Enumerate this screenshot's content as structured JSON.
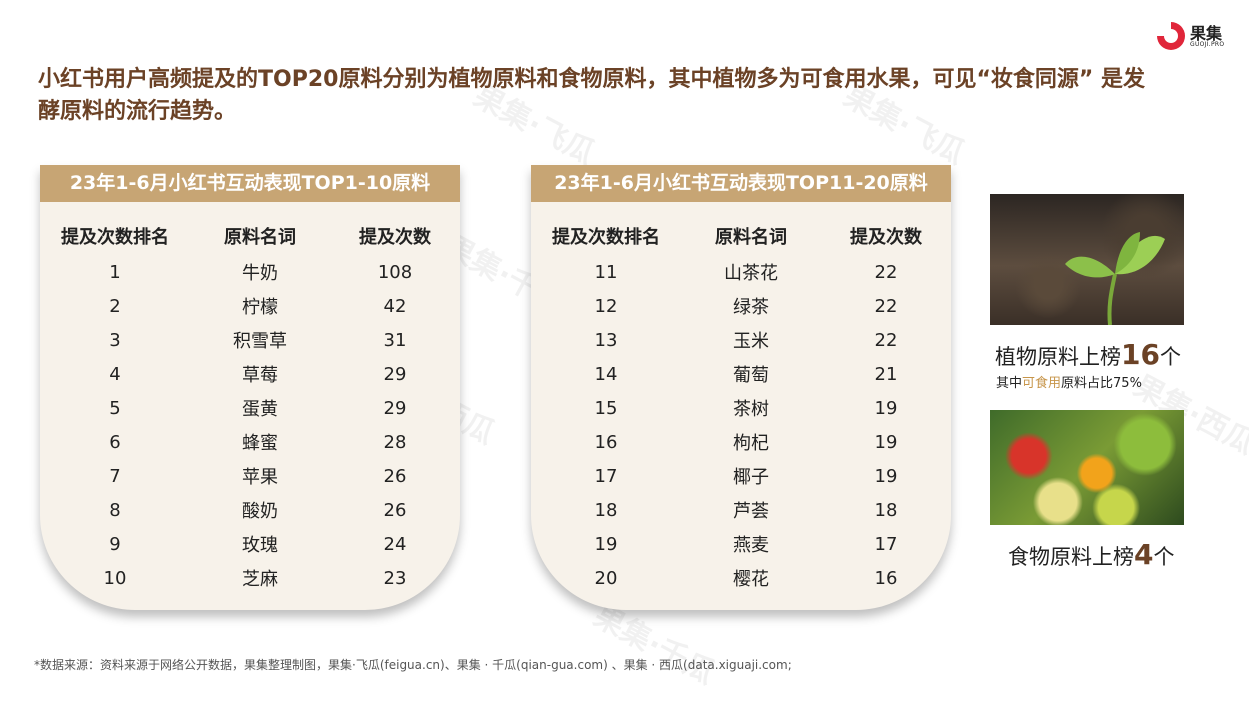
{
  "watermarks": [
    "果集·飞瓜",
    "果集·千瓜",
    "果集·西瓜",
    "果集·飞瓜",
    "果集·千瓜",
    "果集·西瓜",
    "果集·千瓜",
    "果集·西瓜"
  ],
  "logo": {
    "name": "果集",
    "sub": "GUOJI.PRO",
    "color": "#e0263a"
  },
  "headline": "小红书用户高频提及的TOP20原料分别为植物原料和食物原料，其中植物多为可食用水果，可见“妆食同源” 是发酵原料的流行趋势。",
  "colors": {
    "title": "#6b4226",
    "header_bar": "#c7a574",
    "card_bg": "#f7f2ea",
    "highlight": "#c7954a"
  },
  "tables": [
    {
      "title": "23年1-6月小红书互动表现TOP1-10原料",
      "columns": [
        "提及次数排名",
        "原料名词",
        "提及次数"
      ],
      "rows": [
        [
          "1",
          "牛奶",
          "108"
        ],
        [
          "2",
          "柠檬",
          "42"
        ],
        [
          "3",
          "积雪草",
          "31"
        ],
        [
          "4",
          "草莓",
          "29"
        ],
        [
          "5",
          "蛋黄",
          "29"
        ],
        [
          "6",
          "蜂蜜",
          "28"
        ],
        [
          "7",
          "苹果",
          "26"
        ],
        [
          "8",
          "酸奶",
          "26"
        ],
        [
          "9",
          "玫瑰",
          "24"
        ],
        [
          "10",
          "芝麻",
          "23"
        ]
      ]
    },
    {
      "title": "23年1-6月小红书互动表现TOP11-20原料",
      "columns": [
        "提及次数排名",
        "原料名词",
        "提及次数"
      ],
      "rows": [
        [
          "11",
          "山茶花",
          "22"
        ],
        [
          "12",
          "绿茶",
          "22"
        ],
        [
          "13",
          "玉米",
          "22"
        ],
        [
          "14",
          "葡萄",
          "21"
        ],
        [
          "15",
          "茶树",
          "19"
        ],
        [
          "16",
          "枸杞",
          "19"
        ],
        [
          "17",
          "椰子",
          "19"
        ],
        [
          "18",
          "芦荟",
          "18"
        ],
        [
          "19",
          "燕麦",
          "17"
        ],
        [
          "20",
          "樱花",
          "16"
        ]
      ]
    }
  ],
  "side": {
    "plant": {
      "prefix": "植物原料上榜",
      "count": "16",
      "suffix": "个",
      "note_prefix": "其中",
      "note_highlight": "可食用",
      "note_suffix": "原料占比75%"
    },
    "food": {
      "prefix": "食物原料上榜",
      "count": "4",
      "suffix": "个"
    }
  },
  "footnote": "*数据来源：资料来源于网络公开数据，果集整理制图，果集·飞瓜(feigua.cn)、果集 · 千瓜(qian-gua.com) 、果集 · 西瓜(data.xiguaji.com;"
}
